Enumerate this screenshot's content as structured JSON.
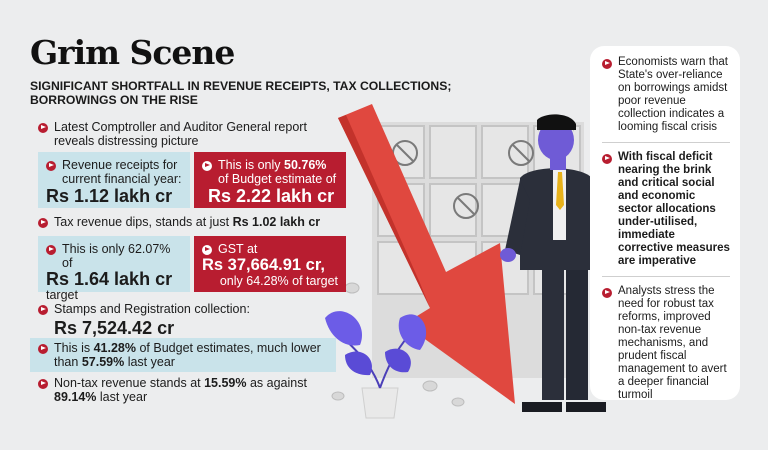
{
  "title": "Grim Scene",
  "subtitle": "SIGNIFICANT SHORTFALL IN REVENUE RECEIPTS, TAX COLLECTIONS; BORROWINGS ON THE RISE",
  "cag": "Latest Comptroller and Auditor General report reveals distressing picture",
  "revenue": {
    "label": "Revenue receipts for current financial year:",
    "value": "Rs 1.12 lakh cr",
    "pct_pre": "This is only ",
    "pct": "50.76%",
    "pct_post": " of Budget estimate of",
    "budget": "Rs 2.22 lakh cr"
  },
  "tax": {
    "pre": "Tax revenue dips, stands at just ",
    "value": "Rs 1.02 lakh cr"
  },
  "target": {
    "pre": "This is only 62.07% of",
    "value": "Rs 1.64 lakh cr",
    "post": "target"
  },
  "gst": {
    "label": "GST at",
    "value": "Rs 37,664.91 cr,",
    "note": "only 64.28% of target"
  },
  "stamps": {
    "label": "Stamps and Registration collection:",
    "value": "Rs 7,524.42 cr"
  },
  "budget_est": {
    "pre": "This is ",
    "pct": "41.28%",
    "mid": " of Budget estimates, much lower than ",
    "pct2": "57.59%",
    "post": " last year"
  },
  "nontax": {
    "pre": "Non-tax revenue stands at ",
    "pct": "15.59%",
    "mid": " as against",
    "pct2": "89.14%",
    "post": " last year"
  },
  "side": [
    "Economists warn that State's over-reliance on borrowings amidst poor revenue collection indicates a looming fiscal crisis",
    "With fiscal deficit nearing the brink and critical social and economic sector allocations under-utilised, immediate corrective measures are imperative",
    "Analysts stress the need for robust tax reforms, improved non-tax revenue mechanisms, and prudent fiscal management to avert a deeper financial turmoil"
  ],
  "colors": {
    "red": "#b81d30",
    "blue": "#c9e3ea",
    "arrow": "#e0483f",
    "suit": "#2b2f3a",
    "skin": "#6f5bd6"
  },
  "icons": [
    "play-bullet-icon",
    "down-arrow-icon",
    "businessman-illustration",
    "plant-icon",
    "coin-icon",
    "no-money-icon"
  ]
}
